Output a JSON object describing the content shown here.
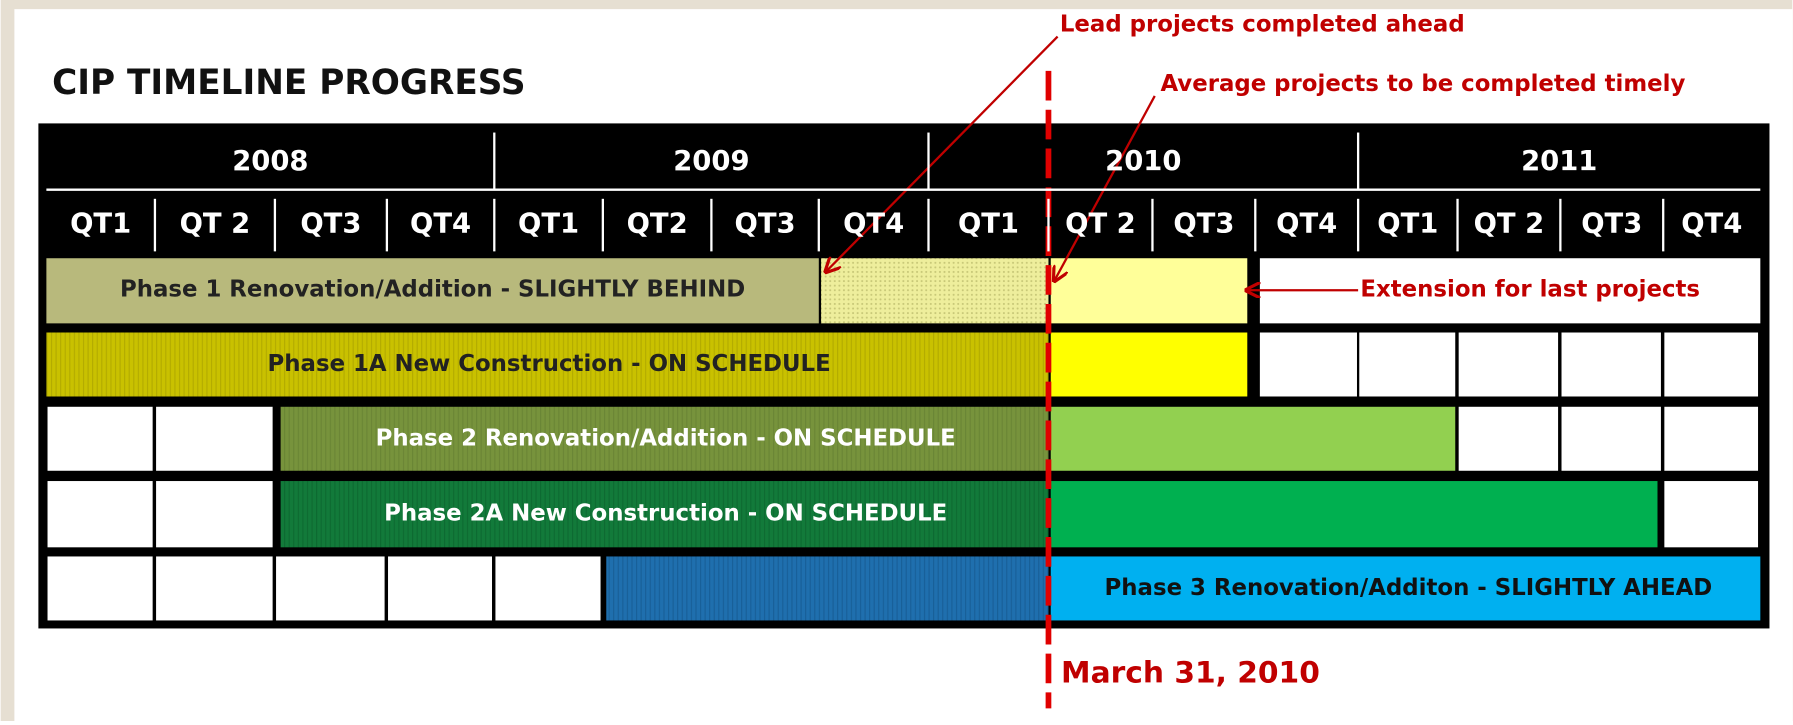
{
  "title": "CIP TIMELINE PROGRESS",
  "years": [
    "2008",
    "2009",
    "2010",
    "2011"
  ],
  "quarters": [
    "QT1",
    "QT 2",
    "QT3",
    "QT4",
    "QT1",
    "QT2",
    "QT3",
    "QT4",
    "QT1",
    "QT 2",
    "QT3",
    "QT4",
    "QT1",
    "QT 2",
    "QT3",
    "QT4"
  ],
  "rows": [
    {
      "label": "Phase 1 Renovation/Addition - SLIGHTLY BEHIND"
    },
    {
      "label": "Phase 1A New Construction - ON SCHEDULE"
    },
    {
      "label": "Phase 2 Renovation/Addition - ON SCHEDULE"
    },
    {
      "label": "Phase 2A New Construction - ON SCHEDULE"
    },
    {
      "label": "Phase 3 Renovation/Additon - SLIGHTLY AHEAD"
    }
  ],
  "annotations": {
    "lead": "Lead projects completed ahead",
    "average": "Average projects to be completed timely",
    "extension": "Extension for last projects",
    "date": "March 31, 2010"
  }
}
